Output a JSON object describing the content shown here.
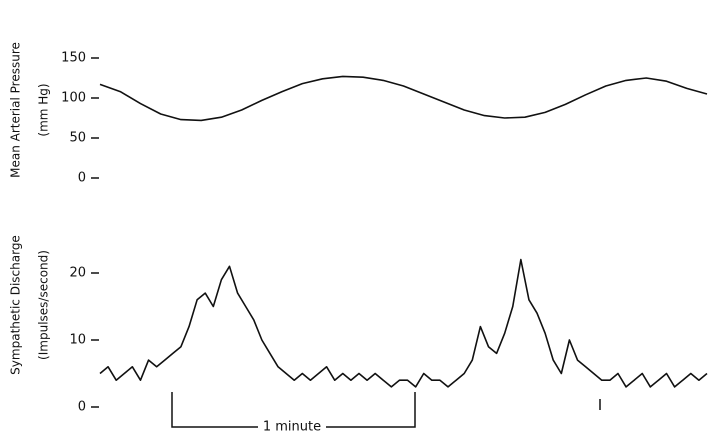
{
  "chart_data": [
    {
      "type": "line",
      "ylabel": "Mean Arterial Pressure",
      "yunit": "(mm Hg)",
      "x": [
        0,
        5,
        10,
        15,
        20,
        25,
        30,
        35,
        40,
        45,
        50,
        55,
        60,
        65,
        70,
        75,
        80,
        85,
        90,
        95,
        100,
        105,
        110,
        115,
        120,
        125,
        130,
        135,
        140,
        145,
        150
      ],
      "values": [
        117,
        108,
        93,
        80,
        73,
        72,
        76,
        85,
        97,
        108,
        118,
        124,
        127,
        126,
        122,
        115,
        105,
        95,
        85,
        78,
        75,
        76,
        82,
        92,
        104,
        115,
        122,
        125,
        121,
        112,
        105
      ],
      "color": "#111111",
      "xlim": [
        0,
        150
      ],
      "ylim": [
        0,
        150
      ],
      "yticks": [
        0,
        50,
        100,
        150
      ]
    },
    {
      "type": "line",
      "ylabel": "Sympathetic Discharge",
      "yunit": "(Impulses/second)",
      "x": [
        0,
        2,
        4,
        6,
        8,
        10,
        12,
        14,
        16,
        18,
        20,
        22,
        24,
        26,
        28,
        30,
        32,
        34,
        36,
        38,
        40,
        42,
        44,
        46,
        48,
        50,
        52,
        54,
        56,
        58,
        60,
        62,
        64,
        66,
        68,
        70,
        72,
        74,
        76,
        78,
        80,
        82,
        84,
        86,
        88,
        90,
        92,
        94,
        96,
        98,
        100,
        102,
        104,
        106,
        108,
        110,
        112,
        114,
        116,
        118,
        120,
        122,
        124,
        126,
        128,
        130,
        132,
        134,
        136,
        138,
        140,
        142,
        144,
        146,
        148,
        150
      ],
      "values": [
        5,
        6,
        4,
        5,
        6,
        4,
        7,
        6,
        7,
        8,
        9,
        12,
        16,
        17,
        15,
        19,
        21,
        17,
        15,
        13,
        10,
        8,
        6,
        5,
        4,
        5,
        4,
        5,
        6,
        4,
        5,
        4,
        5,
        4,
        5,
        4,
        3,
        4,
        4,
        3,
        5,
        4,
        4,
        3,
        4,
        5,
        7,
        12,
        9,
        8,
        11,
        15,
        22,
        16,
        14,
        11,
        7,
        5,
        10,
        7,
        6,
        5,
        4,
        4,
        5,
        3,
        4,
        5,
        3,
        4,
        5,
        3,
        4,
        5,
        4,
        5
      ],
      "color": "#111111",
      "xlim": [
        0,
        150
      ],
      "ylim": [
        0,
        20
      ],
      "yticks": [
        0,
        10,
        20
      ],
      "annotation": "1 minute"
    }
  ]
}
